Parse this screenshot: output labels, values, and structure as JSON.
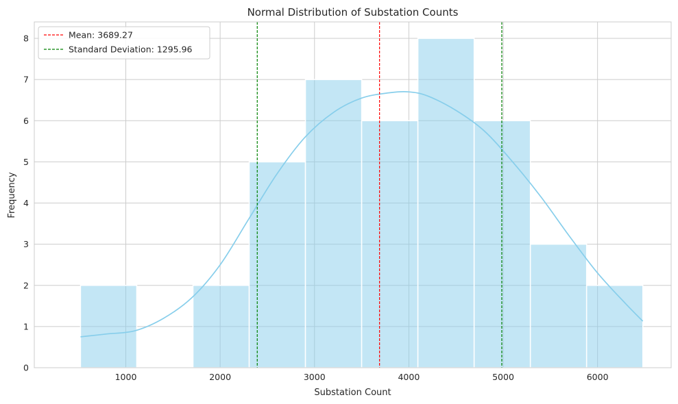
{
  "chart_data": {
    "type": "bar",
    "title": "Normal Distribution of Substation Counts",
    "xlabel": "Substation Count",
    "ylabel": "Frequency",
    "xlim": [
      30,
      6780
    ],
    "ylim": [
      0,
      8.4
    ],
    "xticks": [
      1000,
      2000,
      3000,
      4000,
      5000,
      6000
    ],
    "yticks": [
      0,
      1,
      2,
      3,
      4,
      5,
      6,
      7,
      8
    ],
    "grid": true,
    "bin_edges": [
      520,
      1116,
      1712,
      2308,
      2904,
      3500,
      4096,
      4692,
      5288,
      5884,
      6480
    ],
    "values": [
      2,
      0,
      2,
      5,
      7,
      6,
      8,
      6,
      3,
      2
    ],
    "bar_color": "#87ceeb",
    "kde": {
      "color": "#87ceeb",
      "x": [
        520,
        800,
        1100,
        1400,
        1700,
        2000,
        2300,
        2600,
        2900,
        3200,
        3500,
        3800,
        4000,
        4200,
        4500,
        4800,
        5100,
        5400,
        5700,
        6000,
        6300,
        6480
      ],
      "y": [
        0.75,
        0.82,
        0.9,
        1.2,
        1.7,
        2.5,
        3.6,
        4.7,
        5.6,
        6.2,
        6.55,
        6.68,
        6.7,
        6.6,
        6.25,
        5.75,
        5.0,
        4.15,
        3.2,
        2.3,
        1.55,
        1.13
      ]
    },
    "lines": [
      {
        "name": "Mean: 3689.27",
        "x": 3689.27,
        "color": "#ff0000",
        "style": "dashed"
      },
      {
        "name": "Standard Deviation: 1295.96",
        "x": 2393.31,
        "color": "#008000",
        "style": "dashed"
      },
      {
        "name": "",
        "x": 4985.23,
        "color": "#008000",
        "style": "dashed"
      }
    ],
    "legend": {
      "placement": "top-left",
      "entries": [
        {
          "label": "Mean: 3689.27",
          "color": "#ff0000"
        },
        {
          "label": "Standard Deviation: 1295.96",
          "color": "#008000"
        }
      ]
    }
  }
}
